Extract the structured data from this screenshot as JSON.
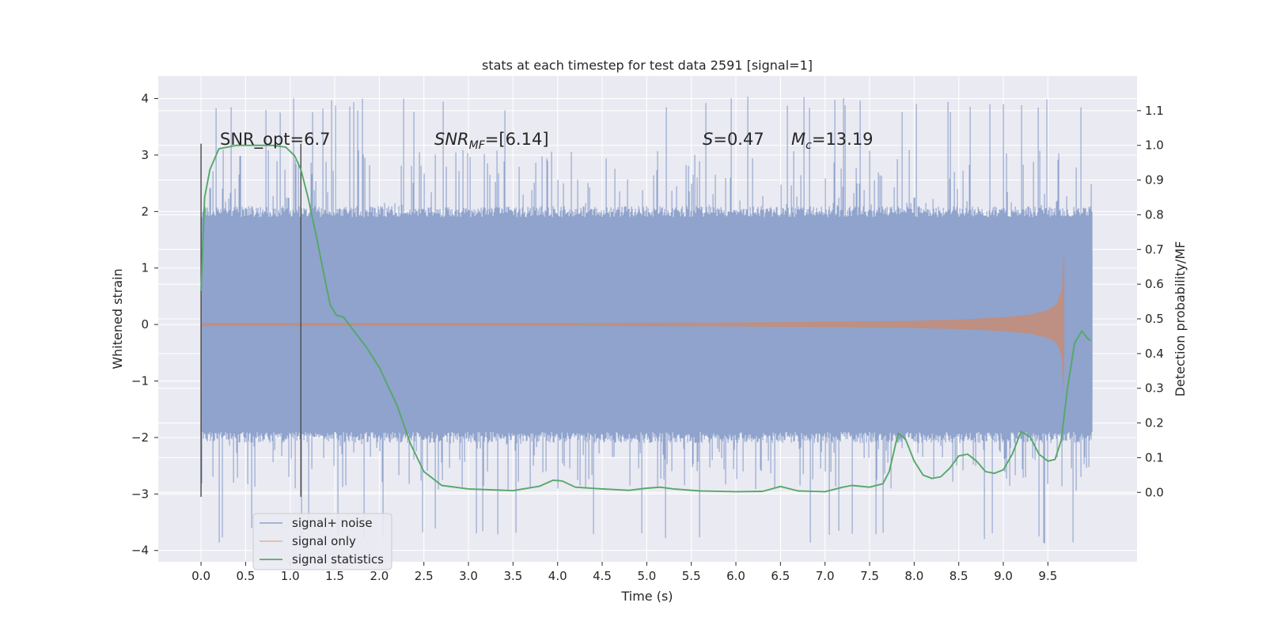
{
  "chart_data": {
    "type": "line",
    "title": "stats at each timestep for test data 2591 [signal=1]",
    "xlabel": "Time (s)",
    "ylabel_left": "Whitened strain",
    "ylabel_right": "Detection probability/MF",
    "xlim": [
      -0.48,
      10.5
    ],
    "ylim_left": [
      -4.2,
      4.4
    ],
    "ylim_right": [
      -0.2,
      1.2
    ],
    "x_ticks": [
      0.0,
      0.5,
      1.0,
      1.5,
      2.0,
      2.5,
      3.0,
      3.5,
      4.0,
      4.5,
      5.0,
      5.5,
      6.0,
      6.5,
      7.0,
      7.5,
      8.0,
      8.5,
      9.0,
      9.5
    ],
    "x_tick_labels": [
      "0.0",
      "0.5",
      "1.0",
      "1.5",
      "2.0",
      "2.5",
      "3.0",
      "3.5",
      "4.0",
      "4.5",
      "5.0",
      "5.5",
      "6.0",
      "6.5",
      "7.0",
      "7.5",
      "8.0",
      "8.5",
      "9.0",
      "9.5"
    ],
    "y_left_ticks": [
      -4,
      -3,
      -2,
      -1,
      0,
      1,
      2,
      3,
      4
    ],
    "y_left_tick_labels": [
      "−4",
      "−3",
      "−2",
      "−1",
      "0",
      "1",
      "2",
      "3",
      "4"
    ],
    "y_right_ticks": [
      0.0,
      0.1,
      0.2,
      0.3,
      0.4,
      0.5,
      0.6,
      0.7,
      0.8,
      0.9,
      1.0,
      1.1
    ],
    "y_right_tick_labels": [
      "0.0",
      "0.1",
      "0.2",
      "0.3",
      "0.4",
      "0.5",
      "0.6",
      "0.7",
      "0.8",
      "0.9",
      "1.0",
      "1.1"
    ],
    "grid": true,
    "legend_position": "lower-left",
    "series": [
      {
        "name": "signal+ noise",
        "axis": "left",
        "color": "#8fa3cc",
        "style": "dense noise band",
        "x_range": [
          0.0,
          10.0
        ],
        "core_envelope": [
          -1.3,
          1.3
        ],
        "typical_extent": [
          -2.0,
          2.0
        ],
        "max_observed": 4.05,
        "min_observed": -3.9
      },
      {
        "name": "signal only",
        "axis": "left",
        "color": "#dd8452",
        "style": "chirp",
        "x": [
          0.0,
          2.0,
          4.0,
          6.0,
          7.0,
          8.0,
          8.5,
          9.0,
          9.3,
          9.5,
          9.6,
          9.66,
          9.68
        ],
        "amplitude": [
          0.02,
          0.02,
          0.02,
          0.03,
          0.04,
          0.06,
          0.08,
          0.12,
          0.17,
          0.25,
          0.35,
          0.6,
          1.25
        ]
      },
      {
        "name": "signal statistics",
        "axis": "right",
        "color": "#55a868",
        "x": [
          0.0,
          0.04,
          0.1,
          0.2,
          0.4,
          0.6,
          0.8,
          0.95,
          1.05,
          1.12,
          1.2,
          1.3,
          1.4,
          1.45,
          1.52,
          1.6,
          1.7,
          1.85,
          2.0,
          2.2,
          2.35,
          2.5,
          2.7,
          3.0,
          3.5,
          3.8,
          3.95,
          4.05,
          4.2,
          4.5,
          4.8,
          5.0,
          5.15,
          5.3,
          5.6,
          6.0,
          6.3,
          6.5,
          6.7,
          7.0,
          7.2,
          7.3,
          7.5,
          7.65,
          7.72,
          7.82,
          7.9,
          8.0,
          8.1,
          8.2,
          8.3,
          8.4,
          8.5,
          8.6,
          8.7,
          8.8,
          8.9,
          9.0,
          9.1,
          9.2,
          9.3,
          9.4,
          9.5,
          9.58,
          9.65,
          9.72,
          9.8,
          9.88,
          9.94,
          9.98
        ],
        "y": [
          0.58,
          0.85,
          0.93,
          0.99,
          1.0,
          1.0,
          1.0,
          0.995,
          0.97,
          0.93,
          0.85,
          0.73,
          0.6,
          0.54,
          0.51,
          0.505,
          0.47,
          0.42,
          0.36,
          0.25,
          0.14,
          0.06,
          0.02,
          0.01,
          0.005,
          0.018,
          0.035,
          0.033,
          0.015,
          0.01,
          0.006,
          0.012,
          0.015,
          0.01,
          0.004,
          0.002,
          0.003,
          0.017,
          0.004,
          0.002,
          0.015,
          0.02,
          0.015,
          0.025,
          0.06,
          0.17,
          0.155,
          0.09,
          0.05,
          0.04,
          0.045,
          0.07,
          0.105,
          0.11,
          0.09,
          0.06,
          0.055,
          0.065,
          0.11,
          0.175,
          0.16,
          0.11,
          0.09,
          0.095,
          0.15,
          0.3,
          0.43,
          0.465,
          0.445,
          0.437
        ]
      }
    ],
    "vertical_markers": [
      {
        "x": 0.0,
        "y_range_left": [
          -3.05,
          3.2
        ]
      },
      {
        "x": 1.12,
        "y_range_left": [
          -3.05,
          3.2
        ]
      }
    ],
    "annotations": [
      "SNR_opt=6.7",
      "SNR",
      "MF",
      "=[6.14]",
      "S",
      "=0.47",
      "M",
      "c",
      "=13.19"
    ]
  },
  "legend": {
    "items": [
      "signal+ noise",
      "signal only",
      "signal statistics"
    ]
  }
}
